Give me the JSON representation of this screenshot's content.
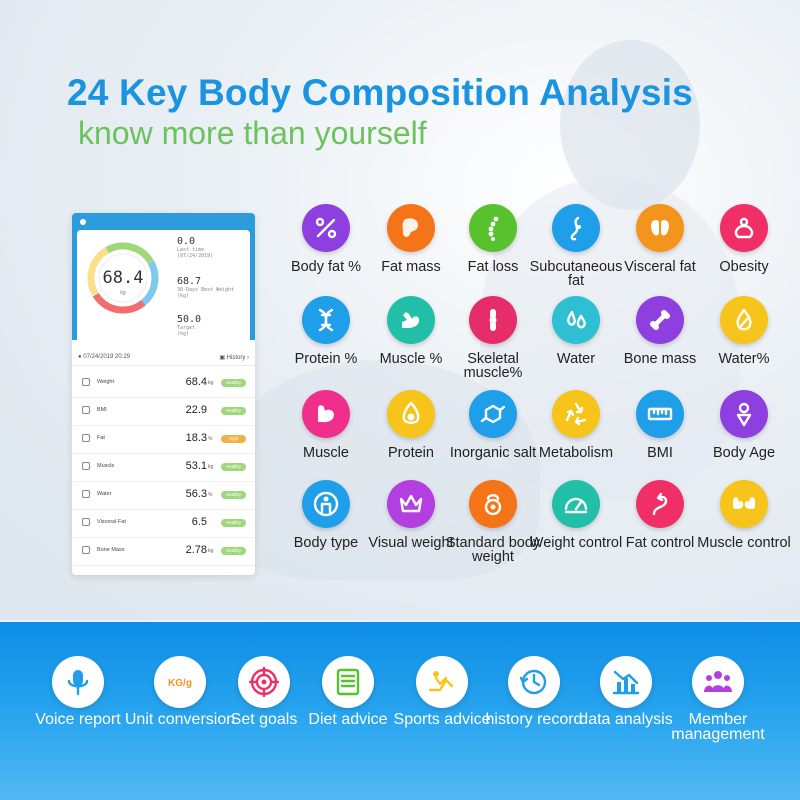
{
  "header": {
    "title": "24 Key Body Composition Analysis",
    "subtitle": "know more than yourself"
  },
  "phone": {
    "ring_value": "68.4",
    "ring_unit": "kg",
    "stats": [
      {
        "value": "0.0",
        "label1": "Last time",
        "label2": "(07/24/2019)"
      },
      {
        "value": "68.7",
        "label1": "30-Days Best Weight",
        "label2": "(kg)"
      },
      {
        "value": "50.0",
        "label1": "Target",
        "label2": "(kg)"
      }
    ],
    "date": "07/24/2019 20:29",
    "history_label": "History",
    "metrics": [
      {
        "name": "Weight",
        "value": "68.4",
        "unit": "kg",
        "badge": "Healthy",
        "status": "healthy"
      },
      {
        "name": "BMI",
        "value": "22.9",
        "unit": "",
        "badge": "Healthy",
        "status": "healthy"
      },
      {
        "name": "Fat",
        "value": "18.3",
        "unit": "%",
        "badge": "High",
        "status": "high"
      },
      {
        "name": "Muscle",
        "value": "53.1",
        "unit": "kg",
        "badge": "Healthy",
        "status": "healthy"
      },
      {
        "name": "Water",
        "value": "56.3",
        "unit": "%",
        "badge": "Healthy",
        "status": "healthy"
      },
      {
        "name": "Visceral Fat",
        "value": "6.5",
        "unit": "",
        "badge": "Healthy",
        "status": "healthy"
      },
      {
        "name": "Bone Mass",
        "value": "2.78",
        "unit": "kg",
        "badge": "Healthy",
        "status": "healthy"
      }
    ]
  },
  "features": [
    {
      "label": "Body fat %",
      "icon": "percent-icon",
      "color": "#8e3fe0"
    },
    {
      "label": "Fat mass",
      "icon": "fat-mass-icon",
      "color": "#f57418"
    },
    {
      "label": "Fat loss",
      "icon": "spine-icon",
      "color": "#57c22d"
    },
    {
      "label": "Subcutaneous fat",
      "icon": "subcutaneous-icon",
      "color": "#1f9ee9"
    },
    {
      "label": "Visceral fat",
      "icon": "visceral-icon",
      "color": "#f5941c"
    },
    {
      "label": "Obesity",
      "icon": "obesity-icon",
      "color": "#f02f66"
    },
    {
      "label": "Protein %",
      "icon": "dna-icon",
      "color": "#1f9ee9"
    },
    {
      "label": "Muscle %",
      "icon": "arm-icon",
      "color": "#22bfa8"
    },
    {
      "label": "Skeletal muscle%",
      "icon": "knee-icon",
      "color": "#e62d6a"
    },
    {
      "label": "Water",
      "icon": "water-drop-icon",
      "color": "#2fbfd3"
    },
    {
      "label": "Bone mass",
      "icon": "bone-icon",
      "color": "#8e3fe0"
    },
    {
      "label": "Water%",
      "icon": "water-percent-icon",
      "color": "#f6c41a"
    },
    {
      "label": "Muscle",
      "icon": "muscle-icon",
      "color": "#f02f8c"
    },
    {
      "label": "Protein",
      "icon": "avocado-icon",
      "color": "#f6c41a"
    },
    {
      "label": "Inorganic salt",
      "icon": "molecule-icon",
      "color": "#1f9ee9"
    },
    {
      "label": "Metabolism",
      "icon": "recycle-icon",
      "color": "#f6c41a"
    },
    {
      "label": "BMI",
      "icon": "ruler-icon",
      "color": "#1f9ee9"
    },
    {
      "label": "Body Age",
      "icon": "body-age-icon",
      "color": "#8e3fe0"
    },
    {
      "label": "Body type",
      "icon": "body-type-icon",
      "color": "#1f9ee9"
    },
    {
      "label": "Visual weight",
      "icon": "crown-icon",
      "color": "#b33fe0"
    },
    {
      "label": "Standard body weight",
      "icon": "kettlebell-icon",
      "color": "#f57418"
    },
    {
      "label": "Weight control",
      "icon": "gauge-icon",
      "color": "#22bfa8"
    },
    {
      "label": "Fat control",
      "icon": "path-arrow-icon",
      "color": "#f02f66"
    },
    {
      "label": "Muscle control",
      "icon": "muscles-icon",
      "color": "#f6c41a"
    }
  ],
  "bottom_features": [
    {
      "label": "Voice report",
      "icon": "microphone-icon",
      "color": "#1f9ee9"
    },
    {
      "label": "Unit conversion",
      "icon": "unit-icon",
      "color": "#f5941c",
      "text": "KG/g"
    },
    {
      "label": "Set goals",
      "icon": "target-icon",
      "color": "#f02f66"
    },
    {
      "label": "Diet advice",
      "icon": "diet-list-icon",
      "color": "#57c22d"
    },
    {
      "label": "Sports advice",
      "icon": "sit-up-icon",
      "color": "#f6c41a"
    },
    {
      "label": "history record",
      "icon": "history-icon",
      "color": "#1f9ee9"
    },
    {
      "label": "data analysis",
      "icon": "analysis-icon",
      "color": "#1f9ee9"
    },
    {
      "label": "Member management",
      "icon": "members-icon",
      "color": "#b33fe0"
    }
  ]
}
